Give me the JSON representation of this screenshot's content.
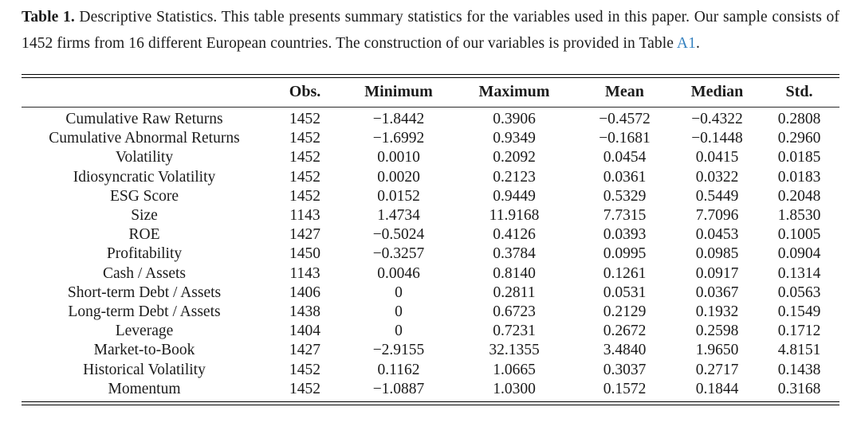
{
  "caption": {
    "label": "Table 1.",
    "body": "Descriptive Statistics. This table presents summary statistics for the variables used in this paper. Our sample consists of 1452 firms from 16 different European countries. The construction of our variables is provided in Table",
    "link": "A1",
    "suffix": "."
  },
  "colors": {
    "text": "#1b1b1b",
    "link_blue": "#3380bf",
    "rule": "#000000"
  },
  "chart_data": {
    "type": "table",
    "title": "Table 1. Descriptive Statistics",
    "columns": [
      "",
      "Obs.",
      "Minimum",
      "Maximum",
      "Mean",
      "Median",
      "Std."
    ],
    "rows": [
      [
        "Cumulative Raw Returns",
        "1452",
        "−1.8442",
        "0.3906",
        "−0.4572",
        "−0.4322",
        "0.2808"
      ],
      [
        "Cumulative Abnormal Returns",
        "1452",
        "−1.6992",
        "0.9349",
        "−0.1681",
        "−0.1448",
        "0.2960"
      ],
      [
        "Volatility",
        "1452",
        "0.0010",
        "0.2092",
        "0.0454",
        "0.0415",
        "0.0185"
      ],
      [
        "Idiosyncratic Volatility",
        "1452",
        "0.0020",
        "0.2123",
        "0.0361",
        "0.0322",
        "0.0183"
      ],
      [
        "ESG Score",
        "1452",
        "0.0152",
        "0.9449",
        "0.5329",
        "0.5449",
        "0.2048"
      ],
      [
        "Size",
        "1143",
        "1.4734",
        "11.9168",
        "7.7315",
        "7.7096",
        "1.8530"
      ],
      [
        "ROE",
        "1427",
        "−0.5024",
        "0.4126",
        "0.0393",
        "0.0453",
        "0.1005"
      ],
      [
        "Profitability",
        "1450",
        "−0.3257",
        "0.3784",
        "0.0995",
        "0.0985",
        "0.0904"
      ],
      [
        "Cash / Assets",
        "1143",
        "0.0046",
        "0.8140",
        "0.1261",
        "0.0917",
        "0.1314"
      ],
      [
        "Short-term Debt / Assets",
        "1406",
        "0",
        "0.2811",
        "0.0531",
        "0.0367",
        "0.0563"
      ],
      [
        "Long-term Debt / Assets",
        "1438",
        "0",
        "0.6723",
        "0.2129",
        "0.1932",
        "0.1549"
      ],
      [
        "Leverage",
        "1404",
        "0",
        "0.7231",
        "0.2672",
        "0.2598",
        "0.1712"
      ],
      [
        "Market-to-Book",
        "1427",
        "−2.9155",
        "32.1355",
        "3.4840",
        "1.9650",
        "4.8151"
      ],
      [
        "Historical Volatility",
        "1452",
        "0.1162",
        "1.0665",
        "0.3037",
        "0.2717",
        "0.1438"
      ],
      [
        "Momentum",
        "1452",
        "−1.0887",
        "1.0300",
        "0.1572",
        "0.1844",
        "0.3168"
      ]
    ]
  }
}
